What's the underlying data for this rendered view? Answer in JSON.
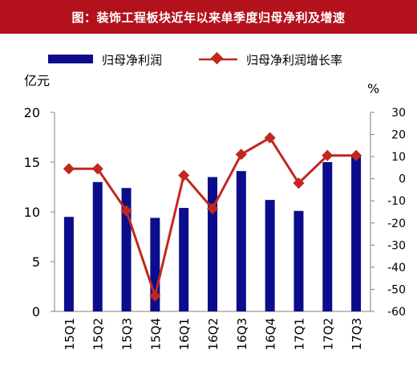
{
  "header": {
    "title": "图：装饰工程板块近年以来单季度归母净利及增速"
  },
  "colors": {
    "header_bg": "#b3121c",
    "bar": "#0c0c8c",
    "line": "#c0281e",
    "axis": "#7f7f7f",
    "text": "#000000"
  },
  "chart_data": {
    "type": "bar+line",
    "title": "图：装饰工程板块近年以来单季度归母净利及增速",
    "categories": [
      "15Q1",
      "15Q2",
      "15Q3",
      "15Q4",
      "16Q1",
      "16Q2",
      "16Q3",
      "16Q4",
      "17Q1",
      "17Q2",
      "17Q3"
    ],
    "series": [
      {
        "name": "归母净利润",
        "type": "bar",
        "axis": "left",
        "values": [
          9.5,
          13.0,
          12.4,
          9.4,
          10.4,
          13.5,
          14.1,
          11.2,
          10.1,
          15.0,
          15.7
        ]
      },
      {
        "name": "归母净利润增长率",
        "type": "line",
        "axis": "right",
        "values": [
          4.5,
          4.5,
          -14.5,
          -53,
          1.5,
          -13.5,
          11,
          18.5,
          -2,
          10.5,
          10.5
        ]
      }
    ],
    "left_axis": {
      "unit_label": "亿元",
      "ylim": [
        0,
        20
      ],
      "ticks": [
        "0",
        "5",
        "10",
        "15",
        "20"
      ]
    },
    "right_axis": {
      "unit_label": "%",
      "ylim": [
        -60,
        30
      ],
      "ticks": [
        "30",
        "20",
        "10",
        "0",
        "-10",
        "-20",
        "-30",
        "-40",
        "-50",
        "-60"
      ]
    },
    "grid": false,
    "legend_position": "top"
  }
}
